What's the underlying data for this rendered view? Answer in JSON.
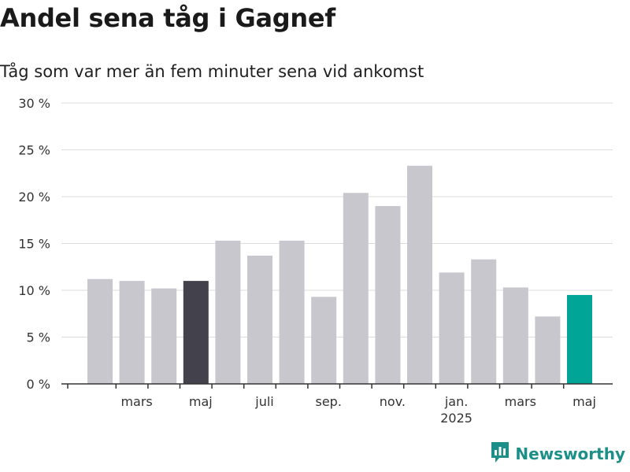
{
  "header": {
    "title": "Andel sena tåg i Gagnef",
    "subtitle": "Tåg som var mer än fem minuter sena vid ankomst"
  },
  "brand": {
    "name": "Newsworthy",
    "icon": "newsworthy-logo-icon"
  },
  "colors": {
    "bar_default": "#c8c7ce",
    "bar_highlight_dark": "#42414c",
    "bar_highlight_teal": "#00a598",
    "grid": "#dcdcdc",
    "axis": "#333333",
    "brand": "#1b8f88"
  },
  "chart_data": {
    "type": "bar",
    "categories": [
      "2024-02",
      "2024-03",
      "2024-04",
      "2024-05",
      "2024-06",
      "2024-07",
      "2024-08",
      "2024-09",
      "2024-10",
      "2024-11",
      "2024-12",
      "2025-01",
      "2025-02",
      "2025-03",
      "2025-04",
      "2025-05"
    ],
    "values": [
      11.2,
      11.0,
      10.2,
      11.0,
      15.3,
      13.7,
      15.3,
      9.3,
      20.4,
      19.0,
      23.3,
      11.9,
      13.3,
      10.3,
      7.2,
      9.5
    ],
    "highlight": {
      "2024-05": "dark",
      "2025-05": "teal"
    },
    "ylim": [
      0,
      30
    ],
    "yticks": [
      0,
      5,
      10,
      15,
      20,
      25,
      30
    ],
    "ytick_labels": [
      "0 %",
      "5 %",
      "10 %",
      "15 %",
      "20 %",
      "25 %",
      "30 %"
    ],
    "xtick_labels": [
      {
        "category": "2024-03",
        "label": "mars"
      },
      {
        "category": "2024-05",
        "label": "maj"
      },
      {
        "category": "2024-07",
        "label": "juli"
      },
      {
        "category": "2024-09",
        "label": "sep."
      },
      {
        "category": "2024-11",
        "label": "nov."
      },
      {
        "category": "2025-01",
        "label": "jan.",
        "sublabel": "2025"
      },
      {
        "category": "2025-03",
        "label": "mars"
      },
      {
        "category": "2025-05",
        "label": "maj"
      }
    ],
    "grid": true,
    "xlabel": "",
    "ylabel": ""
  }
}
